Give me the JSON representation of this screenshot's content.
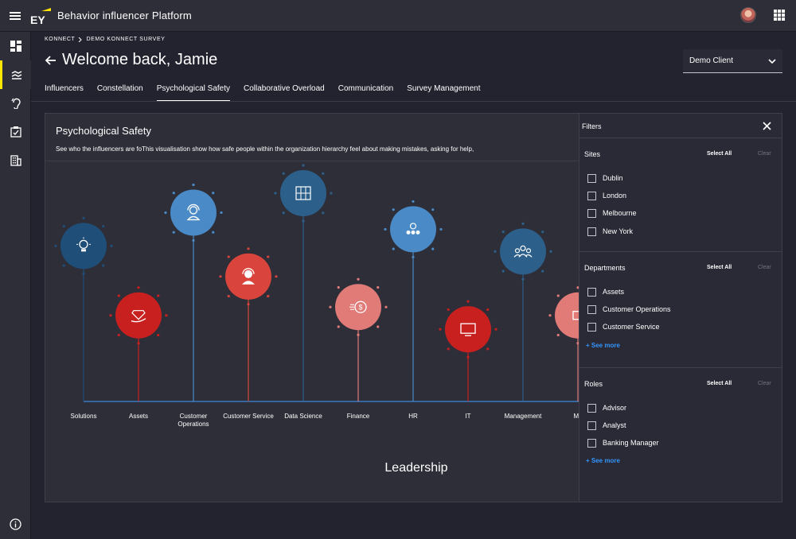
{
  "app": {
    "brand": "EY",
    "title": "Behavior influencer Platform"
  },
  "nav": {
    "rail": [
      {
        "name": "dashboard-icon"
      },
      {
        "name": "insights-icon",
        "active": true
      },
      {
        "name": "ear-icon"
      },
      {
        "name": "survey-icon"
      },
      {
        "name": "building-icon"
      }
    ]
  },
  "breadcrumb": [
    "KONNECT",
    "DEMO KONNECT SURVEY"
  ],
  "header": {
    "welcome": "Welcome back, Jamie"
  },
  "client_select": {
    "value": "Demo Client"
  },
  "tabs": [
    {
      "label": "Influencers"
    },
    {
      "label": "Constellation"
    },
    {
      "label": "Psychological Safety",
      "active": true
    },
    {
      "label": "Collaborative Overload"
    },
    {
      "label": "Communication"
    },
    {
      "label": "Survey Management"
    }
  ],
  "card": {
    "title": "Psychological Safety",
    "description": "See who the influencers are foThis visualisation show how safe people within the organization hierarchy feel about making mistakes, asking for help,",
    "axis_title": "Leadership"
  },
  "chart_data": {
    "type": "lollipop",
    "categories": [
      {
        "label": "Solutions",
        "icon": "lightbulb-gear-icon",
        "color": "#1f4e79",
        "level": 0.56
      },
      {
        "label": "Assets",
        "icon": "diamond-hand-icon",
        "color": "#c8201f",
        "level": 0.31
      },
      {
        "label": "Customer Operations",
        "icon": "headset-user-icon",
        "color": "#4a8ac6",
        "level": 0.68
      },
      {
        "label": "Customer Service",
        "icon": "support-agent-icon",
        "color": "#d9453c",
        "level": 0.45
      },
      {
        "label": "Data Science",
        "icon": "server-icon",
        "color": "#2c5f8a",
        "level": 0.75
      },
      {
        "label": "Finance",
        "icon": "money-icon",
        "color": "#e07b78",
        "level": 0.34
      },
      {
        "label": "HR",
        "icon": "people-icon",
        "color": "#4a8ac6",
        "level": 0.62
      },
      {
        "label": "IT",
        "icon": "monitor-icon",
        "color": "#c8201f",
        "level": 0.26
      },
      {
        "label": "Management",
        "icon": "team-icon",
        "color": "#2c5f8a",
        "level": 0.54
      },
      {
        "label": "Ma",
        "icon": "partial-icon",
        "color": "#e07b78",
        "level": 0.31
      }
    ]
  },
  "filters": {
    "title": "Filters",
    "sections": [
      {
        "title": "Sites",
        "select_all": "Select All",
        "clear": "Clear",
        "options": [
          "Dublin",
          "London",
          "Melbourne",
          "New York"
        ]
      },
      {
        "title": "Departments",
        "select_all": "Select All",
        "clear": "Clear",
        "options": [
          "Assets",
          "Customer Operations",
          "Customer Service"
        ],
        "see_more": "+ See more"
      },
      {
        "title": "Roles",
        "select_all": "Select All",
        "clear": "Clear",
        "options": [
          "Advisor",
          "Analyst",
          "Banking Manager"
        ],
        "see_more": "+ See more"
      }
    ]
  },
  "colors": {
    "accent": "#ffe600",
    "link": "#3395ff",
    "background": "#23232f",
    "surface": "#2e2e38"
  }
}
